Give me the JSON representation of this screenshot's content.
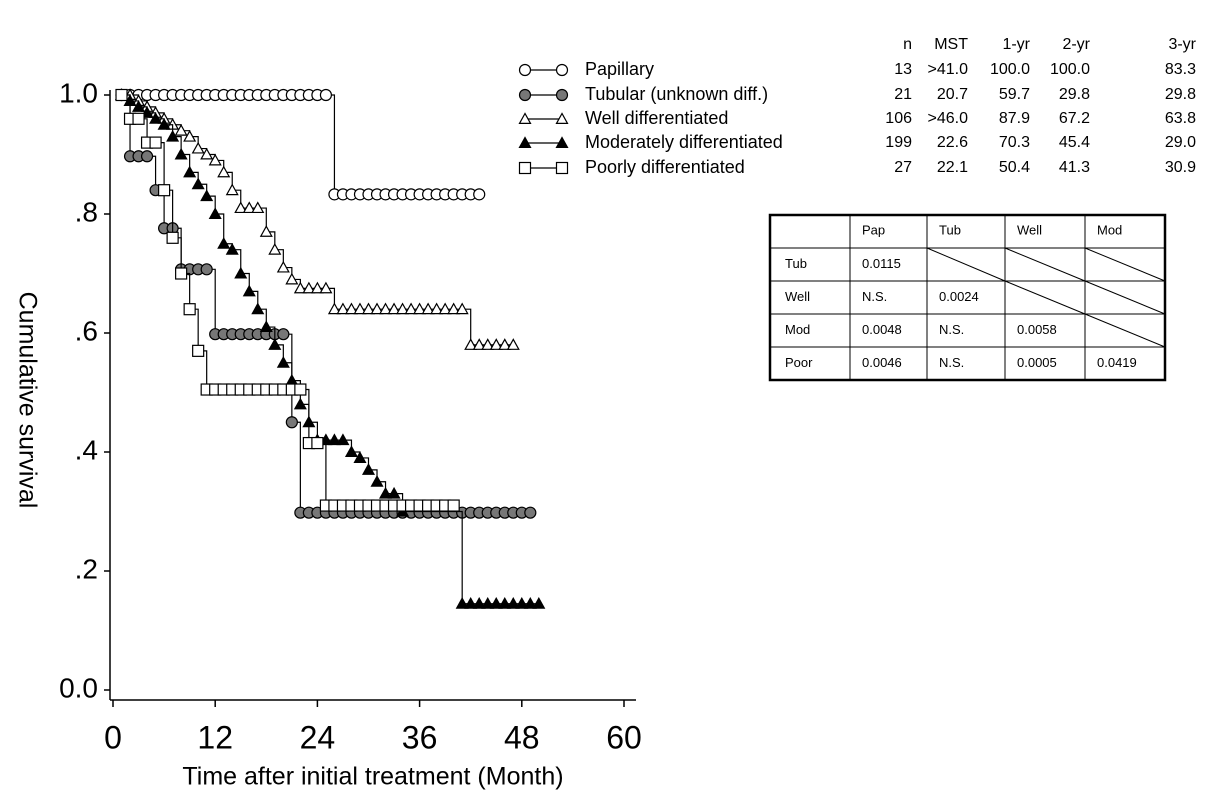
{
  "chart_data": {
    "type": "step",
    "xlabel": "Time after initial treatment (Month)",
    "ylabel": "Cumulative survival",
    "xlim": [
      0,
      60
    ],
    "xticks": [
      0,
      12,
      24,
      36,
      48,
      60
    ],
    "ylim": [
      0,
      1
    ],
    "yticks": [
      {
        "value": 0,
        "label": "0.0"
      },
      {
        "value": 0.2,
        "label": ".2"
      },
      {
        "value": 0.4,
        "label": ".4"
      },
      {
        "value": 0.6,
        "label": ".6"
      },
      {
        "value": 0.8,
        "label": ".8"
      },
      {
        "value": 1,
        "label": "1.0"
      }
    ],
    "series": [
      {
        "name": "Papillary",
        "marker": "circle",
        "color": "#000000",
        "fill": "#ffffff",
        "x": [
          1,
          2,
          3,
          4,
          5,
          6,
          7,
          8,
          9,
          10,
          11,
          12,
          13,
          14,
          15,
          16,
          17,
          18,
          19,
          20,
          21,
          22,
          23,
          24,
          25,
          26,
          27,
          28,
          29,
          30,
          31,
          32,
          33,
          34,
          35,
          36,
          37,
          38,
          39,
          40,
          41,
          42,
          43
        ],
        "values": [
          1,
          1,
          1,
          1,
          1,
          1,
          1,
          1,
          1,
          1,
          1,
          1,
          1,
          1,
          1,
          1,
          1,
          1,
          1,
          1,
          1,
          1,
          1,
          1,
          1,
          0.833,
          0.833,
          0.833,
          0.833,
          0.833,
          0.833,
          0.833,
          0.833,
          0.833,
          0.833,
          0.833,
          0.833,
          0.833,
          0.833,
          0.833,
          0.833,
          0.833,
          0.833
        ]
      },
      {
        "name": "Tubular (unknown diff.)",
        "marker": "circle",
        "color": "#000000",
        "fill": "#777777",
        "x": [
          1,
          2,
          3,
          4,
          5,
          6,
          7,
          8,
          9,
          10,
          11,
          12,
          13,
          14,
          15,
          16,
          17,
          18,
          19,
          20,
          21,
          22,
          23,
          24,
          25,
          26,
          27,
          28,
          29,
          30,
          31,
          32,
          33,
          34,
          35,
          36,
          37,
          38,
          39,
          40,
          41,
          42,
          43,
          44,
          45,
          46,
          47,
          48,
          49
        ],
        "values": [
          1,
          0.897,
          0.897,
          0.897,
          0.84,
          0.776,
          0.776,
          0.707,
          0.707,
          0.707,
          0.707,
          0.598,
          0.598,
          0.598,
          0.598,
          0.598,
          0.598,
          0.598,
          0.598,
          0.598,
          0.45,
          0.298,
          0.298,
          0.298,
          0.298,
          0.298,
          0.298,
          0.298,
          0.298,
          0.298,
          0.298,
          0.298,
          0.298,
          0.298,
          0.298,
          0.298,
          0.298,
          0.298,
          0.298,
          0.298,
          0.298,
          0.298,
          0.298,
          0.298,
          0.298,
          0.298,
          0.298,
          0.298,
          0.298
        ]
      },
      {
        "name": "Well differentiated",
        "marker": "triangle",
        "color": "#000000",
        "fill": "#ffffff",
        "x": [
          1,
          2,
          3,
          4,
          5,
          6,
          7,
          8,
          9,
          10,
          11,
          12,
          13,
          14,
          15,
          16,
          17,
          18,
          19,
          20,
          21,
          22,
          23,
          24,
          25,
          26,
          27,
          28,
          29,
          30,
          31,
          32,
          33,
          34,
          35,
          36,
          37,
          38,
          39,
          40,
          41,
          42,
          43,
          44,
          45,
          46,
          47
        ],
        "values": [
          1,
          1,
          0.99,
          0.98,
          0.97,
          0.96,
          0.95,
          0.94,
          0.93,
          0.91,
          0.9,
          0.89,
          0.87,
          0.84,
          0.81,
          0.81,
          0.81,
          0.77,
          0.74,
          0.71,
          0.69,
          0.675,
          0.675,
          0.675,
          0.675,
          0.64,
          0.64,
          0.64,
          0.64,
          0.64,
          0.64,
          0.64,
          0.64,
          0.64,
          0.64,
          0.64,
          0.64,
          0.64,
          0.64,
          0.64,
          0.64,
          0.58,
          0.58,
          0.58,
          0.58,
          0.58,
          0.58
        ]
      },
      {
        "name": "Moderately differentiated",
        "marker": "triangle",
        "color": "#000000",
        "fill": "#000000",
        "x": [
          1,
          2,
          3,
          4,
          5,
          6,
          7,
          8,
          9,
          10,
          11,
          12,
          13,
          14,
          15,
          16,
          17,
          18,
          19,
          20,
          21,
          22,
          23,
          24,
          25,
          26,
          27,
          28,
          29,
          30,
          31,
          32,
          33,
          34,
          41,
          42,
          43,
          44,
          45,
          46,
          47,
          48,
          49,
          50
        ],
        "values": [
          1,
          0.99,
          0.98,
          0.97,
          0.96,
          0.95,
          0.93,
          0.9,
          0.87,
          0.85,
          0.83,
          0.8,
          0.75,
          0.74,
          0.7,
          0.67,
          0.64,
          0.61,
          0.58,
          0.55,
          0.52,
          0.48,
          0.45,
          0.42,
          0.42,
          0.42,
          0.42,
          0.4,
          0.39,
          0.37,
          0.35,
          0.33,
          0.33,
          0.3,
          0.145,
          0.145,
          0.145,
          0.145,
          0.145,
          0.145,
          0.145,
          0.145,
          0.145,
          0.145
        ]
      },
      {
        "name": "Poorly differentiated",
        "marker": "square",
        "color": "#000000",
        "fill": "#ffffff",
        "x": [
          1,
          2,
          3,
          4,
          5,
          6,
          7,
          8,
          9,
          10,
          11,
          12,
          13,
          14,
          15,
          16,
          17,
          18,
          19,
          20,
          21,
          22,
          23,
          24,
          25,
          26,
          27,
          28,
          29,
          30,
          31,
          32,
          33,
          34,
          35,
          36,
          37,
          38,
          39,
          40
        ],
        "values": [
          1,
          0.96,
          0.96,
          0.92,
          0.92,
          0.84,
          0.76,
          0.7,
          0.64,
          0.57,
          0.505,
          0.505,
          0.505,
          0.505,
          0.505,
          0.505,
          0.505,
          0.505,
          0.505,
          0.505,
          0.505,
          0.505,
          0.415,
          0.415,
          0.31,
          0.31,
          0.31,
          0.31,
          0.31,
          0.31,
          0.31,
          0.31,
          0.31,
          0.31,
          0.31,
          0.31,
          0.31,
          0.31,
          0.31,
          0.31
        ]
      }
    ]
  },
  "legend_table": {
    "columns": [
      "n",
      "MST",
      "1-yr",
      "2-yr",
      "3-yr"
    ],
    "rows": [
      [
        "13",
        ">41.0",
        "100.0",
        "100.0",
        "83.3"
      ],
      [
        "21",
        "20.7",
        "59.7",
        "29.8",
        "29.8"
      ],
      [
        "106",
        ">46.0",
        "87.9",
        "67.2",
        "63.8"
      ],
      [
        "199",
        "22.6",
        "70.3",
        "45.4",
        "29.0"
      ],
      [
        "27",
        "22.1",
        "50.4",
        "41.3",
        "30.9"
      ]
    ]
  },
  "pvalue_table": {
    "columns": [
      "Pap",
      "Tub",
      "Well",
      "Mod"
    ],
    "rows": [
      {
        "label": "Tub",
        "cells": [
          "0.0115",
          null,
          null,
          null
        ]
      },
      {
        "label": "Well",
        "cells": [
          "N.S.",
          "0.0024",
          null,
          null
        ]
      },
      {
        "label": "Mod",
        "cells": [
          "0.0048",
          "N.S.",
          "0.0058",
          null
        ]
      },
      {
        "label": "Poor",
        "cells": [
          "0.0046",
          "N.S.",
          "0.0005",
          "0.0419"
        ]
      }
    ]
  }
}
